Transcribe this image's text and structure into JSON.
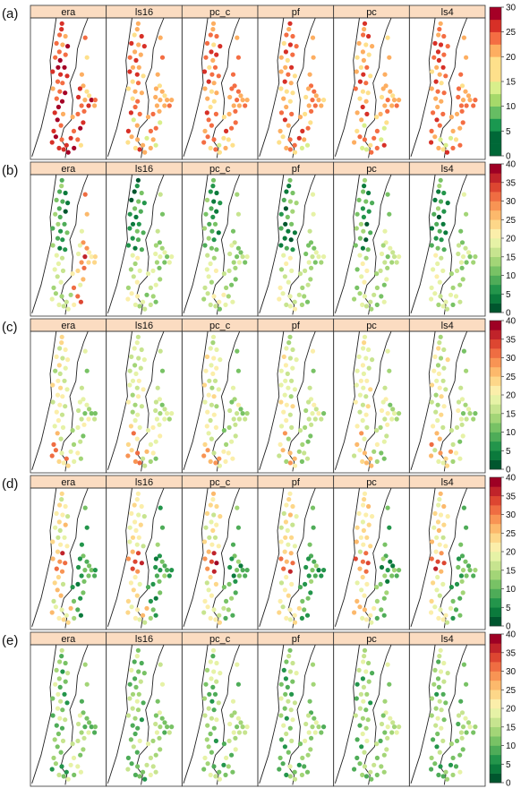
{
  "figure": {
    "panel_names": [
      "era",
      "ls16",
      "pc_c",
      "pf",
      "pc",
      "ls4"
    ],
    "color_ramp": [
      "#006837",
      "#1a9850",
      "#66bd63",
      "#a6d96a",
      "#d9ef8b",
      "#fee08b",
      "#fdae61",
      "#f46d43",
      "#d73027",
      "#a50026"
    ]
  },
  "chart_data": [
    {
      "type": "scatter",
      "label": "(a)",
      "panels": [
        "era",
        "ls16",
        "pc_c",
        "pf",
        "pc",
        "ls4"
      ],
      "colorbar": {
        "ticks": [
          0,
          5,
          10,
          15,
          20,
          25,
          30
        ],
        "range": [
          0,
          30
        ],
        "levels": 12
      },
      "station_values_by_panel": {
        "era": "high values (20-30) along the coastal strip and interior",
        "others": "mostly 15-25"
      }
    },
    {
      "type": "scatter",
      "label": "(b)",
      "panels": [
        "era",
        "ls16",
        "pc_c",
        "pf",
        "pc",
        "ls4"
      ],
      "colorbar": {
        "ticks": [
          0,
          5,
          10,
          15,
          20,
          25,
          30,
          35,
          40
        ],
        "range": [
          0,
          40
        ],
        "levels": 16
      }
    },
    {
      "type": "scatter",
      "label": "(c)",
      "panels": [
        "era",
        "ls16",
        "pc_c",
        "pf",
        "pc",
        "ls4"
      ],
      "colorbar": {
        "ticks": [
          0,
          5,
          10,
          15,
          20,
          25,
          30,
          35,
          40
        ],
        "range": [
          0,
          40
        ],
        "levels": 16
      }
    },
    {
      "type": "scatter",
      "label": "(d)",
      "panels": [
        "era",
        "ls16",
        "pc_c",
        "pf",
        "pc",
        "ls4"
      ],
      "colorbar": {
        "ticks": [
          0,
          5,
          10,
          15,
          20,
          25,
          30,
          35,
          40
        ],
        "range": [
          0,
          40
        ],
        "levels": 16
      }
    },
    {
      "type": "scatter",
      "label": "(e)",
      "panels": [
        "era",
        "ls16",
        "pc_c",
        "pf",
        "pc",
        "ls4"
      ],
      "colorbar": {
        "ticks": [
          0,
          5,
          10,
          15,
          20,
          25,
          30,
          35,
          40
        ],
        "range": [
          0,
          40
        ],
        "levels": 16
      }
    }
  ],
  "panel_labels": {
    "era": "era",
    "ls16": "ls16",
    "pc_c": "pc_c",
    "pf": "pf",
    "pc": "pc",
    "ls4": "ls4"
  }
}
